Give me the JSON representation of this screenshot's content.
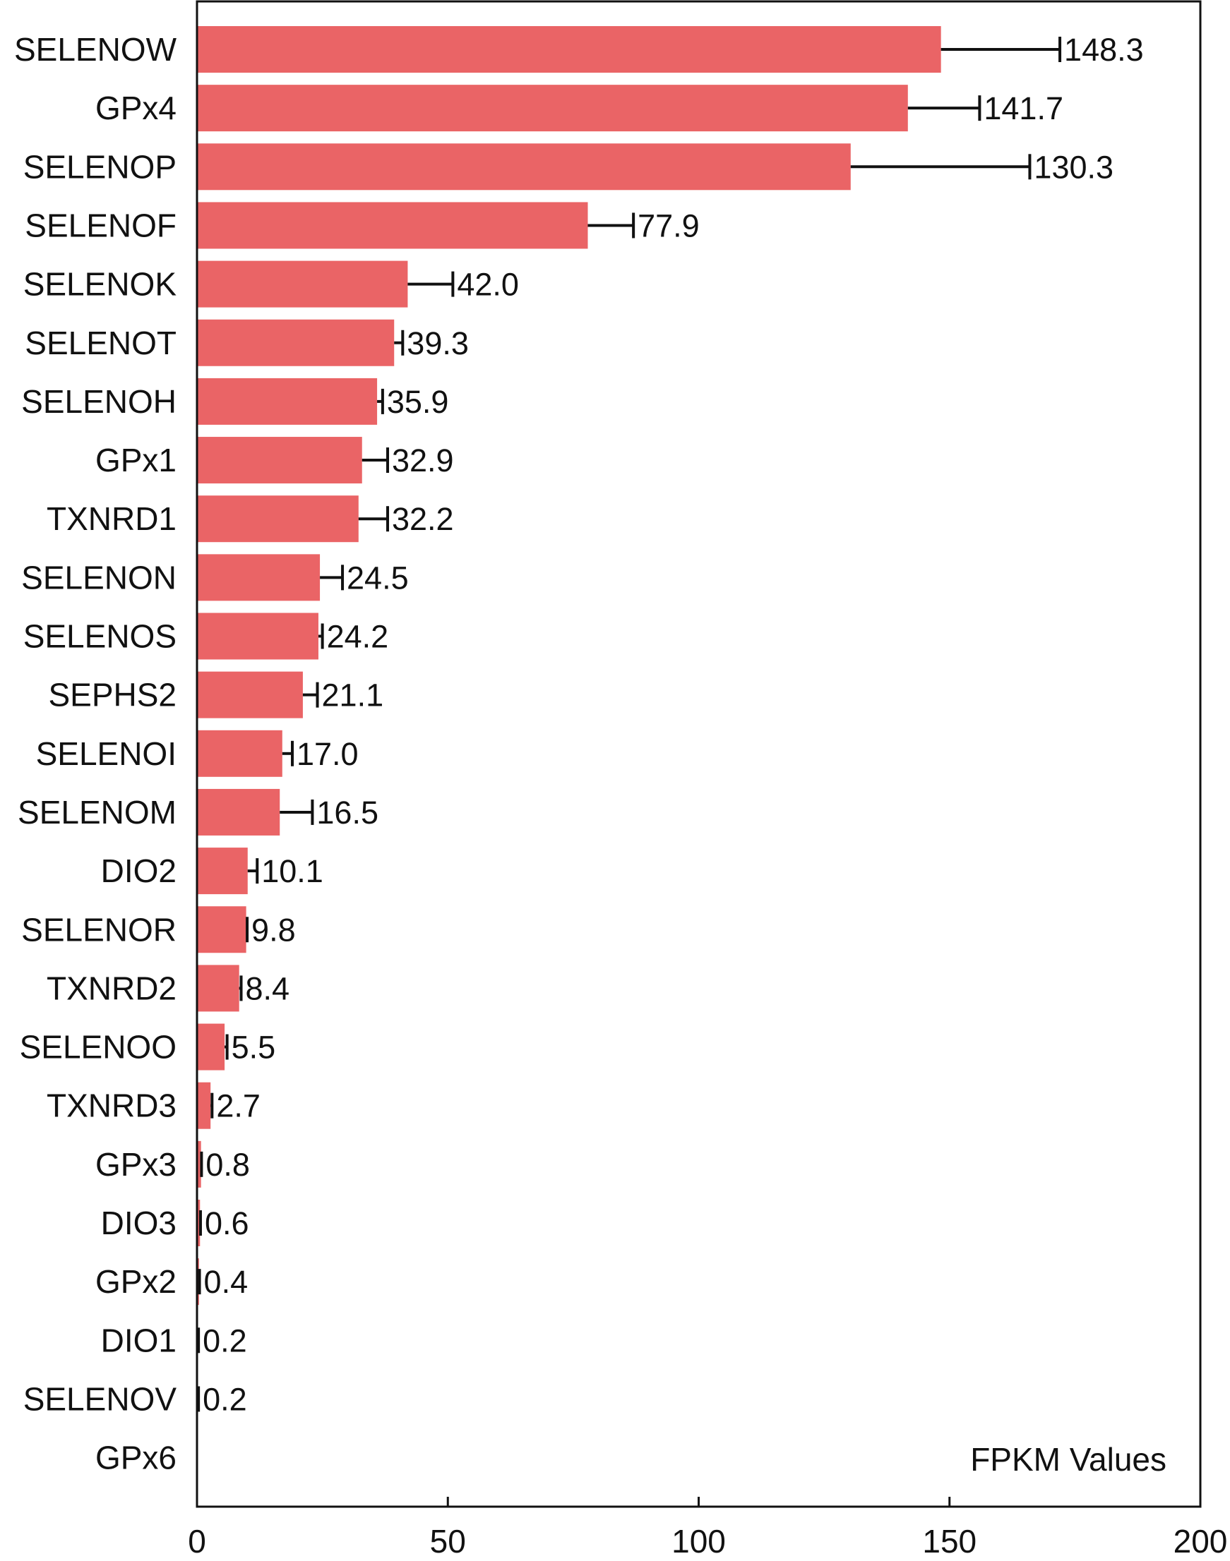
{
  "chart_data": {
    "type": "bar",
    "orientation": "horizontal",
    "categories": [
      "SELENOW",
      "GPx4",
      "SELENOP",
      "SELENOF",
      "SELENOK",
      "SELENOT",
      "SELENOH",
      "GPx1",
      "TXNRD1",
      "SELENON",
      "SELENOS",
      "SEPHS2",
      "SELENOI",
      "SELENOM",
      "DIO2",
      "SELENOR",
      "TXNRD2",
      "SELENOO",
      "TXNRD3",
      "GPx3",
      "DIO3",
      "GPx2",
      "DIO1",
      "SELENOV",
      "GPx6"
    ],
    "values": [
      148.3,
      141.7,
      130.3,
      77.9,
      42.0,
      39.3,
      35.9,
      32.9,
      32.2,
      24.5,
      24.2,
      21.1,
      17.0,
      16.5,
      10.1,
      9.8,
      8.4,
      5.5,
      2.7,
      0.8,
      0.6,
      0.4,
      0.2,
      0.2,
      0.0
    ],
    "error_upper": [
      172,
      156,
      166,
      87,
      51,
      41,
      37,
      38,
      38,
      29,
      25,
      24,
      19,
      23,
      12,
      10,
      8.8,
      6,
      3,
      0.9,
      0.7,
      0.5,
      0.3,
      0.3,
      0.0
    ],
    "value_labels": [
      "148.3",
      "141.7",
      "130.3",
      "77.9",
      "42.0",
      "39.3",
      "35.9",
      "32.9",
      "32.2",
      "24.5",
      "24.2",
      "21.1",
      "17.0",
      "16.5",
      "10.1",
      "9.8",
      "8.4",
      "5.5",
      "2.7",
      "0.8",
      "0.6",
      "0.4",
      "0.2",
      "0.2",
      ""
    ],
    "title": "",
    "xlabel": "",
    "ylabel": "",
    "annotation": "FPKM Values",
    "xlim": [
      0,
      200
    ],
    "xticks": [
      0,
      50,
      100,
      150,
      200
    ],
    "xtick_labels": [
      "0",
      "50",
      "100",
      "150",
      "200"
    ],
    "grid": false,
    "legend": "none",
    "colors": {
      "bar": "#ea6466",
      "error_bar": "#111111",
      "axis": "#111111"
    }
  }
}
